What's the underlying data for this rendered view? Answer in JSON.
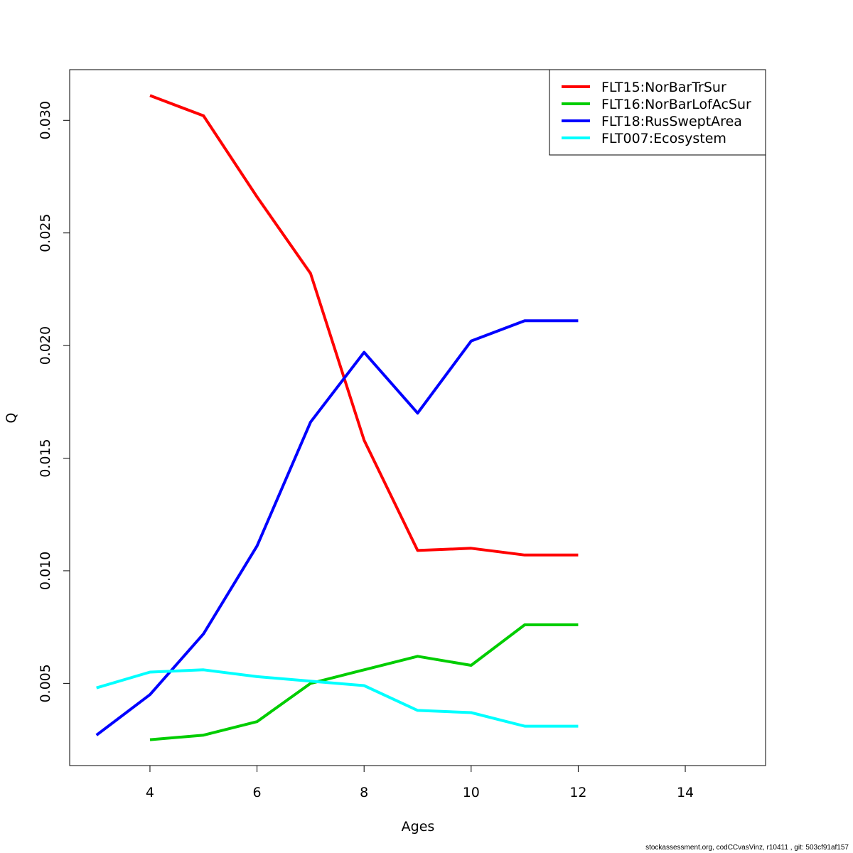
{
  "chart_data": {
    "type": "line",
    "title": "",
    "xlabel": "Ages",
    "ylabel": "Q",
    "xlim": [
      2.5,
      15.5
    ],
    "ylim": [
      0.00135,
      0.03225
    ],
    "x_ticks": [
      4,
      6,
      8,
      10,
      12,
      14
    ],
    "x_tick_labels": [
      "4",
      "6",
      "8",
      "10",
      "12",
      "14"
    ],
    "y_ticks": [
      0.005,
      0.01,
      0.015,
      0.02,
      0.025,
      0.03
    ],
    "y_tick_labels": [
      "0.005",
      "0.010",
      "0.015",
      "0.020",
      "0.025",
      "0.030"
    ],
    "grid": false,
    "legend_position": "top-right",
    "series": [
      {
        "name": "FLT15:NorBarTrSur",
        "color": "#ff0000",
        "x": [
          4,
          5,
          6,
          7,
          8,
          9,
          10,
          11,
          12
        ],
        "y": [
          0.0311,
          0.0302,
          0.0266,
          0.0232,
          0.0158,
          0.0109,
          0.011,
          0.0107,
          0.0107
        ]
      },
      {
        "name": "FLT16:NorBarLofAcSur",
        "color": "#00cd00",
        "x": [
          4,
          5,
          6,
          7,
          8,
          9,
          10,
          11,
          12
        ],
        "y": [
          0.0025,
          0.0027,
          0.0033,
          0.005,
          0.0056,
          0.0062,
          0.0058,
          0.0076,
          0.0076
        ]
      },
      {
        "name": "FLT18:RusSweptArea",
        "color": "#0000ff",
        "x": [
          3,
          4,
          5,
          6,
          7,
          8,
          9,
          10,
          11,
          12
        ],
        "y": [
          0.0027,
          0.0045,
          0.0072,
          0.0111,
          0.0166,
          0.0197,
          0.017,
          0.0202,
          0.0211,
          0.0211
        ]
      },
      {
        "name": "FLT007:Ecosystem",
        "color": "#00ffff",
        "x": [
          3,
          4,
          5,
          6,
          7,
          8,
          9,
          10,
          11,
          12
        ],
        "y": [
          0.0048,
          0.0055,
          0.0056,
          0.0053,
          0.0051,
          0.0049,
          0.0038,
          0.0037,
          0.0031,
          0.0031
        ]
      }
    ]
  },
  "footer": {
    "text": "stockassessment.org, codCCvasVinz, r10411 , git: 503cf91af157"
  }
}
